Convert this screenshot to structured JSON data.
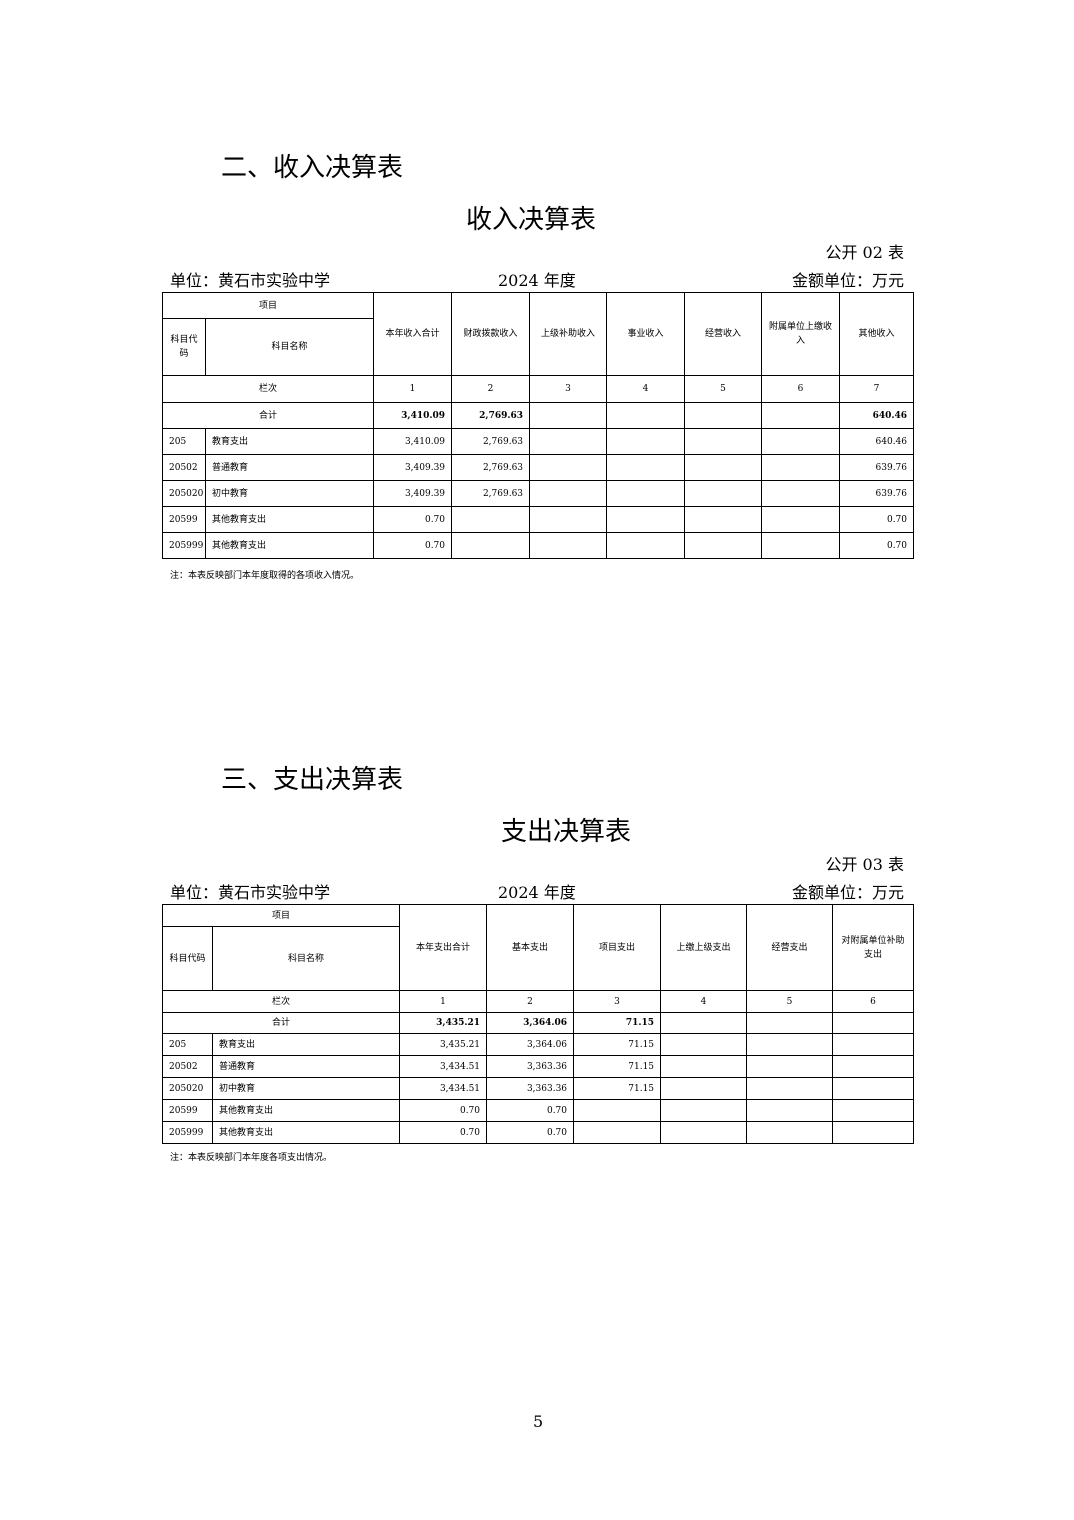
{
  "income": {
    "section_title": "二、收入决算表",
    "table_title": "收入决算表",
    "form_no": "公开 02 表",
    "unit": "单位：黄石市实验中学",
    "year": "2024 年度",
    "amount_unit": "金额单位：万元",
    "header_item": "项目",
    "header_code": "科目代码",
    "header_name": "科目名称",
    "columns": [
      "本年收入合计",
      "财政拨款收入",
      "上级补助收入",
      "事业收入",
      "经营收入",
      "附属单位上缴收入",
      "其他收入"
    ],
    "index_label": "栏次",
    "index_values": [
      "1",
      "2",
      "3",
      "4",
      "5",
      "6",
      "7"
    ],
    "total_label": "合计",
    "total_values": [
      "3,410.09",
      "2,769.63",
      "",
      "",
      "",
      "",
      "640.46"
    ],
    "rows": [
      {
        "code": "205",
        "name": "教育支出",
        "values": [
          "3,410.09",
          "2,769.63",
          "",
          "",
          "",
          "",
          "640.46"
        ]
      },
      {
        "code": "20502",
        "name": "普通教育",
        "values": [
          "3,409.39",
          "2,769.63",
          "",
          "",
          "",
          "",
          "639.76"
        ]
      },
      {
        "code": "205020",
        "name": "初中教育",
        "values": [
          "3,409.39",
          "2,769.63",
          "",
          "",
          "",
          "",
          "639.76"
        ]
      },
      {
        "code": "20599",
        "name": "其他教育支出",
        "values": [
          "0.70",
          "",
          "",
          "",
          "",
          "",
          "0.70"
        ]
      },
      {
        "code": "205999",
        "name": "其他教育支出",
        "values": [
          "0.70",
          "",
          "",
          "",
          "",
          "",
          "0.70"
        ]
      }
    ],
    "note": "注：本表反映部门本年度取得的各项收入情况。"
  },
  "expense": {
    "section_title": "三、支出决算表",
    "table_title": "支出决算表",
    "form_no": "公开 03 表",
    "unit": "单位：黄石市实验中学",
    "year": "2024 年度",
    "amount_unit": "金额单位：万元",
    "header_item": "项目",
    "header_code": "科目代码",
    "header_name": "科目名称",
    "columns": [
      "本年支出合计",
      "基本支出",
      "项目支出",
      "上缴上级支出",
      "经营支出",
      "对附属单位补助支出"
    ],
    "index_label": "栏次",
    "index_values": [
      "1",
      "2",
      "3",
      "4",
      "5",
      "6"
    ],
    "total_label": "合计",
    "total_values": [
      "3,435.21",
      "3,364.06",
      "71.15",
      "",
      "",
      ""
    ],
    "rows": [
      {
        "code": "205",
        "name": "教育支出",
        "values": [
          "3,435.21",
          "3,364.06",
          "71.15",
          "",
          "",
          ""
        ]
      },
      {
        "code": "20502",
        "name": "普通教育",
        "values": [
          "3,434.51",
          "3,363.36",
          "71.15",
          "",
          "",
          ""
        ]
      },
      {
        "code": "205020",
        "name": "初中教育",
        "values": [
          "3,434.51",
          "3,363.36",
          "71.15",
          "",
          "",
          ""
        ]
      },
      {
        "code": "20599",
        "name": "其他教育支出",
        "values": [
          "0.70",
          "0.70",
          "",
          "",
          "",
          ""
        ]
      },
      {
        "code": "205999",
        "name": "其他教育支出",
        "values": [
          "0.70",
          "0.70",
          "",
          "",
          "",
          ""
        ]
      }
    ],
    "note": "注：本表反映部门本年度各项支出情况。"
  },
  "page_number": "5"
}
